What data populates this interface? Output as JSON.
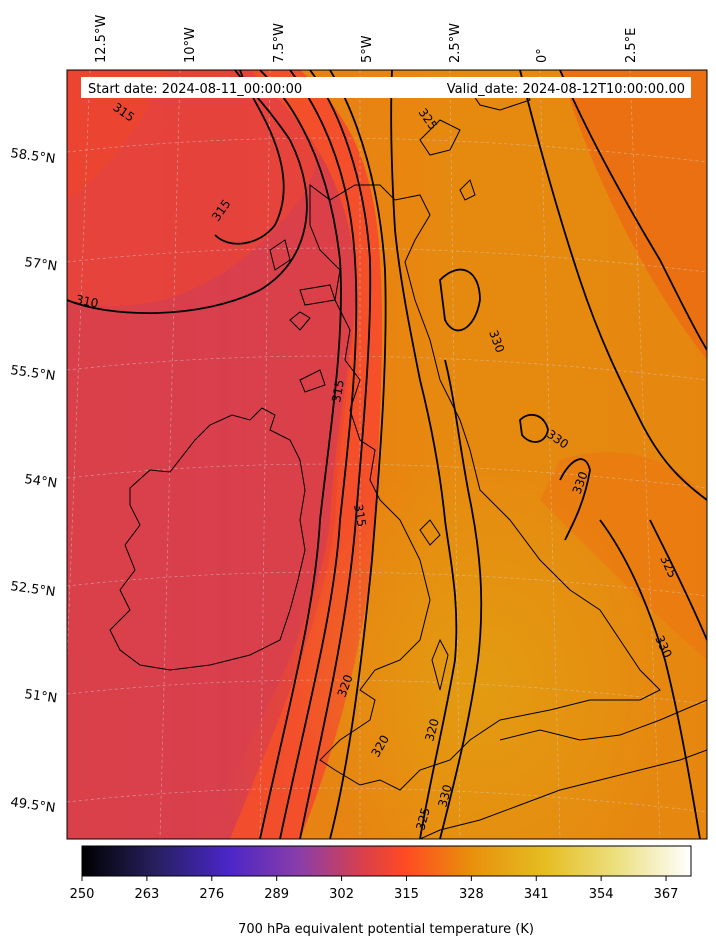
{
  "header": {
    "start_date": "Start date: 2024-08-11_00:00:00",
    "valid_date": "Valid_date: 2024-08-12T10:00:00.00"
  },
  "longitude_labels": [
    "12.5°W",
    "10°W",
    "7.5°W",
    "5°W",
    "2.5°W",
    "0°",
    "2.5°E"
  ],
  "latitude_labels": [
    "58.5°N",
    "57°N",
    "55.5°N",
    "54°N",
    "52.5°N",
    "51°N",
    "49.5°N"
  ],
  "contour_labels": [
    "315",
    "315",
    "310",
    "325",
    "330",
    "330",
    "330",
    "325",
    "330",
    "315",
    "320",
    "320",
    "320",
    "325",
    "330",
    "315"
  ],
  "colorbar": {
    "label": "700 hPa equivalent potential temperature (K)",
    "ticks": [
      "250",
      "263",
      "276",
      "289",
      "302",
      "315",
      "328",
      "341",
      "354",
      "367"
    ],
    "range": [
      250,
      372
    ],
    "colormap": "CMRmap",
    "colors": [
      "#000000",
      "#2a1f6a",
      "#4b25c8",
      "#9945a0",
      "#d9404c",
      "#ff4a22",
      "#e8910a",
      "#e8c020",
      "#eee480",
      "#ffffff"
    ]
  },
  "map": {
    "field": "700 hPa equivalent potential temperature",
    "units": "K",
    "contour_levels": [
      310,
      315,
      320,
      325,
      330
    ],
    "colors": {
      "cold_west": "#d8404a",
      "mid": "#f54e26",
      "warm_east": "#e68a10",
      "land_outline": "#000000",
      "grid": "#c0c0c0"
    }
  }
}
